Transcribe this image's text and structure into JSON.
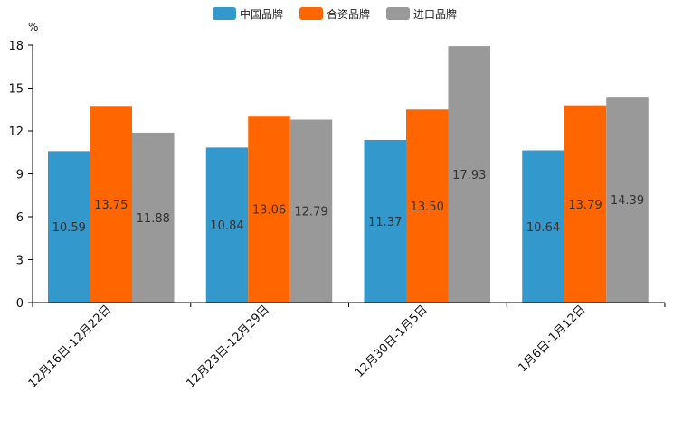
{
  "chart_data": {
    "type": "bar",
    "title": "",
    "ylabel": "%",
    "xlabel": "",
    "ylim": [
      0,
      18
    ],
    "yticks": [
      0,
      3,
      6,
      9,
      12,
      15,
      18
    ],
    "categories": [
      "12月16日-12月22日",
      "12月23日-12月29日",
      "12月30日-1月5日",
      "1月6日-1月12日"
    ],
    "series": [
      {
        "name": "中国品牌",
        "color": "#3399CC",
        "values": [
          10.59,
          10.84,
          11.37,
          10.64
        ],
        "labels": [
          "10.59",
          "10.84",
          "11.37",
          "10.64"
        ]
      },
      {
        "name": "合资品牌",
        "color": "#FF6600",
        "values": [
          13.75,
          13.06,
          13.5,
          13.79
        ],
        "labels": [
          "13.75",
          "13.06",
          "13.50",
          "13.79"
        ]
      },
      {
        "name": "进口品牌",
        "color": "#999999",
        "values": [
          11.88,
          12.79,
          17.93,
          14.39
        ],
        "labels": [
          "11.88",
          "12.79",
          "17.93",
          "14.39"
        ]
      }
    ],
    "legend_position": "top-center",
    "grid": false
  }
}
